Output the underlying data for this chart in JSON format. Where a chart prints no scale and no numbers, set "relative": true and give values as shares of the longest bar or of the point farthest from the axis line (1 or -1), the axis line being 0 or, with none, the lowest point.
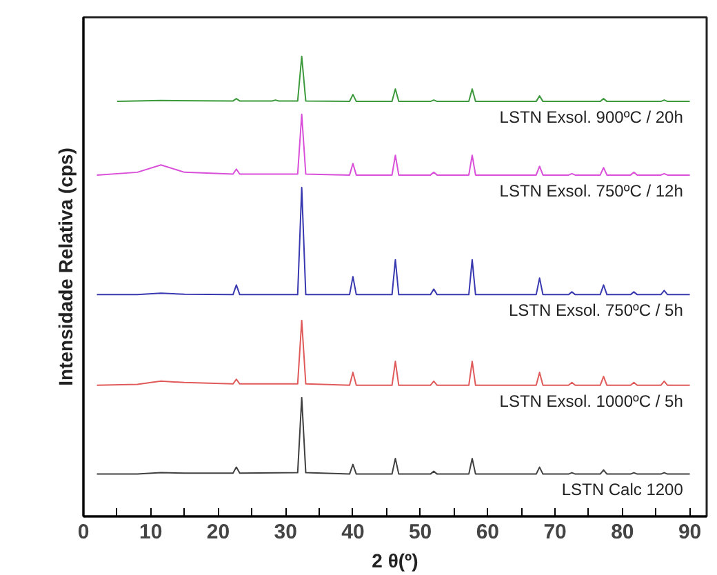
{
  "chart_data": {
    "type": "line",
    "relative": true,
    "xlabel": "2 θ(º)",
    "ylabel": "Intensidade Relativa (cps)",
    "xlim": [
      0,
      92.5
    ],
    "xticks": [
      0,
      {
        "value": 5,
        "label": null
      },
      10,
      {
        "value": 15,
        "label": null
      },
      20,
      {
        "value": 25,
        "label": null
      },
      30,
      {
        "value": 35,
        "label": null
      },
      40,
      {
        "value": 45,
        "label": null
      },
      50,
      {
        "value": 55,
        "label": null
      },
      60,
      {
        "value": 65,
        "label": null
      },
      70,
      {
        "value": 75,
        "label": null
      },
      80,
      {
        "value": 85,
        "label": null
      },
      90
    ],
    "grid": false,
    "marker": "none",
    "line_style": "solid",
    "tick_labels": "x",
    "series": [
      {
        "name": "LSTN Calc 1200",
        "color": "#404040",
        "x": [
          2,
          8,
          11.5,
          15,
          22.2,
          22.7,
          23.2,
          31.8,
          32.4,
          33,
          39.5,
          40,
          40.5,
          45.8,
          46.3,
          46.8,
          51.5,
          52,
          52.5,
          57.2,
          57.7,
          58.2,
          67.2,
          67.7,
          68.2,
          72,
          72.5,
          73,
          76.7,
          77.2,
          77.7,
          81.2,
          81.7,
          82.2,
          85.7,
          86.2,
          86.7,
          90
        ],
        "values": [
          0.092,
          0.092,
          0.095,
          0.094,
          0.094,
          0.107,
          0.094,
          0.095,
          0.258,
          0.095,
          0.092,
          0.113,
          0.092,
          0.092,
          0.126,
          0.092,
          0.092,
          0.098,
          0.092,
          0.092,
          0.126,
          0.092,
          0.092,
          0.107,
          0.092,
          0.092,
          0.095,
          0.092,
          0.092,
          0.101,
          0.092,
          0.092,
          0.095,
          0.092,
          0.092,
          0.095,
          0.092,
          0.092
        ]
      },
      {
        "name": "LSTN Exsol. 1000ºC / 5h",
        "color": "#e05a5a",
        "x": [
          2,
          8,
          11.5,
          15,
          22.2,
          22.7,
          23.2,
          31.8,
          32.4,
          33,
          39.5,
          40,
          40.5,
          45.8,
          46.3,
          46.8,
          51.5,
          52,
          52.5,
          57.2,
          57.7,
          58.2,
          67.2,
          67.7,
          68.2,
          72,
          72.5,
          73,
          76.7,
          77.2,
          77.7,
          81.2,
          81.7,
          82.2,
          85.7,
          86.2,
          86.7,
          90
        ],
        "values": [
          0.285,
          0.287,
          0.294,
          0.291,
          0.288,
          0.298,
          0.288,
          0.288,
          0.426,
          0.288,
          0.285,
          0.313,
          0.285,
          0.285,
          0.337,
          0.285,
          0.285,
          0.294,
          0.285,
          0.285,
          0.337,
          0.285,
          0.285,
          0.313,
          0.285,
          0.285,
          0.291,
          0.285,
          0.285,
          0.304,
          0.285,
          0.285,
          0.291,
          0.285,
          0.285,
          0.294,
          0.285,
          0.285
        ]
      },
      {
        "name": "LSTN Exsol. 750ºC / 5h",
        "color": "#3838b0",
        "x": [
          2,
          8,
          11.5,
          15,
          22.2,
          22.7,
          23.2,
          31.8,
          32.4,
          33,
          39.5,
          40,
          40.5,
          45.8,
          46.3,
          46.8,
          51.5,
          52,
          52.5,
          57.2,
          57.7,
          58.2,
          67.2,
          67.7,
          68.2,
          72,
          72.5,
          73,
          76.7,
          77.2,
          77.7,
          81.2,
          81.7,
          82.2,
          85.7,
          86.2,
          86.7,
          90
        ],
        "values": [
          0.482,
          0.482,
          0.485,
          0.483,
          0.482,
          0.503,
          0.482,
          0.482,
          0.715,
          0.482,
          0.482,
          0.521,
          0.482,
          0.482,
          0.558,
          0.482,
          0.482,
          0.494,
          0.482,
          0.482,
          0.558,
          0.482,
          0.482,
          0.518,
          0.482,
          0.482,
          0.488,
          0.482,
          0.482,
          0.503,
          0.482,
          0.482,
          0.488,
          0.482,
          0.482,
          0.491,
          0.482,
          0.482
        ]
      },
      {
        "name": "LSTN Exsol. 750ºC / 12h",
        "color": "#d94fd9",
        "x": [
          2,
          8,
          11.5,
          15,
          22.2,
          22.7,
          23.2,
          31.8,
          32.4,
          33,
          39.5,
          40,
          40.5,
          45.8,
          46.3,
          46.8,
          51.5,
          52,
          52.5,
          57.2,
          57.7,
          58.2,
          67.2,
          67.7,
          68.2,
          72,
          72.5,
          73,
          76.7,
          77.2,
          77.7,
          81.2,
          81.7,
          82.2,
          85.7,
          86.2,
          86.7,
          90
        ],
        "values": [
          0.742,
          0.748,
          0.764,
          0.748,
          0.744,
          0.755,
          0.744,
          0.744,
          0.874,
          0.744,
          0.742,
          0.767,
          0.742,
          0.742,
          0.785,
          0.742,
          0.742,
          0.748,
          0.742,
          0.742,
          0.785,
          0.742,
          0.742,
          0.761,
          0.742,
          0.742,
          0.745,
          0.742,
          0.742,
          0.758,
          0.742,
          0.742,
          0.748,
          0.742,
          0.742,
          0.745,
          0.742,
          0.742
        ]
      },
      {
        "name": "LSTN Exsol. 900ºC / 20h",
        "color": "#3c9a3c",
        "x": [
          5,
          11.5,
          22.2,
          22.7,
          23.2,
          28,
          28.5,
          29,
          31.8,
          32.4,
          33,
          39.5,
          40,
          40.5,
          45.8,
          46.3,
          46.8,
          51.5,
          52,
          52.5,
          57.2,
          57.7,
          58.2,
          67.2,
          67.7,
          68.2,
          76.7,
          77.2,
          77.7,
          85.7,
          86.2,
          86.7,
          90
        ],
        "values": [
          0.902,
          0.904,
          0.903,
          0.908,
          0.903,
          0.903,
          0.905,
          0.903,
          0.903,
          1.0,
          0.903,
          0.902,
          0.917,
          0.902,
          0.902,
          0.929,
          0.902,
          0.902,
          0.905,
          0.902,
          0.902,
          0.929,
          0.902,
          0.902,
          0.914,
          0.902,
          0.902,
          0.908,
          0.902,
          0.902,
          0.905,
          0.902,
          0.902
        ]
      }
    ]
  }
}
